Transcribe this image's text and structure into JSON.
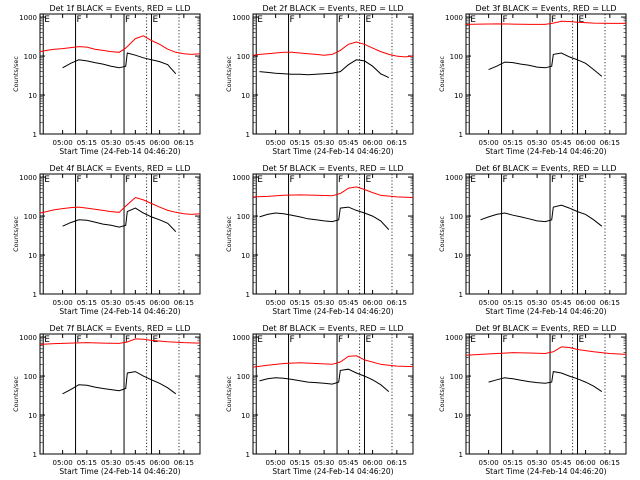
{
  "figure": {
    "background": "#ffffff",
    "axis_color": "#000000",
    "ylabel": "Counts/sec",
    "xlabel": "Start Time (24-Feb-14 04:46:20)",
    "x_tick_labels": [
      "05:00",
      "05:15",
      "05:30",
      "05:45",
      "06:00",
      "06:15"
    ],
    "y_tick_labels": [
      "1",
      "10",
      "100",
      "1000"
    ],
    "marker_labels": [
      "E",
      "F",
      "F",
      "E"
    ],
    "series_colors": {
      "events": "#000000",
      "lld": "#ff0000"
    }
  },
  "chart_data": [
    {
      "type": "line",
      "title": "Det 1f BLACK = Events, RED = LLD",
      "xlabel": "Start Time (24-Feb-14 04:46:20)",
      "ylabel": "Counts/sec",
      "xlim": [
        "04:46",
        "06:25"
      ],
      "ylim": [
        1,
        1200
      ],
      "y_scale": "log",
      "solid_markers_at": [
        "04:48",
        "05:08",
        "05:38",
        "05:55"
      ],
      "dotted_markers_at": [
        "05:52",
        "06:12"
      ],
      "series": [
        {
          "color": "#000000",
          "x": [
            "05:00",
            "05:05",
            "05:10",
            "05:15",
            "05:20",
            "05:25",
            "05:30",
            "05:35",
            "05:39",
            "05:40",
            "05:45",
            "05:50",
            "05:55",
            "06:00",
            "06:05",
            "06:10"
          ],
          "values": [
            50,
            65,
            80,
            75,
            68,
            62,
            55,
            50,
            55,
            120,
            105,
            90,
            80,
            72,
            60,
            35
          ]
        },
        {
          "color": "#ff0000",
          "x": [
            "04:46",
            "04:50",
            "04:55",
            "05:00",
            "05:05",
            "05:10",
            "05:15",
            "05:20",
            "05:25",
            "05:30",
            "05:35",
            "05:39",
            "05:45",
            "05:50",
            "05:55",
            "06:00",
            "06:05",
            "06:10",
            "06:15",
            "06:20",
            "06:25"
          ],
          "values": [
            130,
            140,
            150,
            155,
            165,
            175,
            170,
            150,
            140,
            130,
            125,
            160,
            280,
            330,
            250,
            200,
            150,
            125,
            115,
            110,
            115
          ]
        }
      ]
    },
    {
      "type": "line",
      "title": "Det 2f BLACK = Events, RED = LLD",
      "xlabel": "Start Time (24-Feb-14 04:46:20)",
      "ylabel": "Counts/sec",
      "xlim": [
        "04:46",
        "06:25"
      ],
      "ylim": [
        1,
        1200
      ],
      "y_scale": "log",
      "solid_markers_at": [
        "04:48",
        "05:08",
        "05:38",
        "05:55"
      ],
      "dotted_markers_at": [
        "05:52",
        "06:12"
      ],
      "series": [
        {
          "color": "#000000",
          "x": [
            "04:50",
            "04:55",
            "05:00",
            "05:05",
            "05:10",
            "05:15",
            "05:20",
            "05:25",
            "05:30",
            "05:35",
            "05:40",
            "05:45",
            "05:50",
            "05:55",
            "06:00",
            "06:05",
            "06:10"
          ],
          "values": [
            40,
            38,
            36,
            35,
            34,
            34,
            33,
            34,
            35,
            36,
            40,
            60,
            80,
            75,
            55,
            35,
            28
          ]
        },
        {
          "color": "#ff0000",
          "x": [
            "04:46",
            "04:50",
            "04:55",
            "05:00",
            "05:05",
            "05:10",
            "05:15",
            "05:20",
            "05:25",
            "05:30",
            "05:35",
            "05:40",
            "05:45",
            "05:50",
            "05:55",
            "06:00",
            "06:05",
            "06:10",
            "06:15",
            "06:20",
            "06:25"
          ],
          "values": [
            105,
            110,
            115,
            120,
            125,
            125,
            120,
            115,
            110,
            105,
            110,
            140,
            200,
            230,
            200,
            160,
            130,
            110,
            100,
            95,
            100
          ]
        }
      ]
    },
    {
      "type": "line",
      "title": "Det 3f BLACK = Events, RED = LLD",
      "xlabel": "Start Time (24-Feb-14 04:46:20)",
      "ylabel": "Counts/sec",
      "xlim": [
        "04:46",
        "06:25"
      ],
      "ylim": [
        1,
        1200
      ],
      "y_scale": "log",
      "solid_markers_at": [
        "04:48",
        "05:08",
        "05:38",
        "05:55"
      ],
      "dotted_markers_at": [
        "05:52",
        "06:12"
      ],
      "series": [
        {
          "color": "#000000",
          "x": [
            "05:00",
            "05:05",
            "05:10",
            "05:15",
            "05:20",
            "05:25",
            "05:30",
            "05:35",
            "05:39",
            "05:40",
            "05:45",
            "05:50",
            "05:55",
            "06:00",
            "06:05",
            "06:10"
          ],
          "values": [
            45,
            55,
            70,
            68,
            62,
            58,
            52,
            50,
            55,
            110,
            120,
            95,
            80,
            65,
            45,
            30
          ]
        },
        {
          "color": "#ff0000",
          "x": [
            "04:46",
            "04:55",
            "05:05",
            "05:15",
            "05:25",
            "05:35",
            "05:40",
            "05:45",
            "05:50",
            "05:55",
            "06:05",
            "06:15",
            "06:25"
          ],
          "values": [
            650,
            660,
            670,
            660,
            650,
            650,
            700,
            780,
            770,
            740,
            700,
            690,
            690
          ]
        }
      ]
    },
    {
      "type": "line",
      "title": "Det 4f BLACK = Events, RED = LLD",
      "xlabel": "Start Time (24-Feb-14 04:46:20)",
      "ylabel": "Counts/sec",
      "xlim": [
        "04:46",
        "06:25"
      ],
      "ylim": [
        1,
        1200
      ],
      "y_scale": "log",
      "solid_markers_at": [
        "04:48",
        "05:08",
        "05:38",
        "05:55"
      ],
      "dotted_markers_at": [
        "05:52",
        "06:12"
      ],
      "series": [
        {
          "color": "#000000",
          "x": [
            "05:00",
            "05:05",
            "05:10",
            "05:15",
            "05:20",
            "05:25",
            "05:30",
            "05:35",
            "05:39",
            "05:40",
            "05:45",
            "05:50",
            "05:55",
            "06:00",
            "06:05",
            "06:10"
          ],
          "values": [
            55,
            68,
            80,
            78,
            70,
            62,
            58,
            52,
            58,
            130,
            160,
            120,
            95,
            80,
            65,
            40
          ]
        },
        {
          "color": "#ff0000",
          "x": [
            "04:46",
            "04:50",
            "04:55",
            "05:00",
            "05:05",
            "05:10",
            "05:15",
            "05:20",
            "05:25",
            "05:30",
            "05:35",
            "05:39",
            "05:45",
            "05:50",
            "05:55",
            "06:00",
            "06:05",
            "06:10",
            "06:15",
            "06:20",
            "06:25"
          ],
          "values": [
            120,
            130,
            145,
            155,
            165,
            170,
            160,
            150,
            140,
            130,
            125,
            180,
            300,
            260,
            210,
            170,
            140,
            125,
            115,
            110,
            115
          ]
        }
      ]
    },
    {
      "type": "line",
      "title": "Det 5f BLACK = Events, RED = LLD",
      "xlabel": "Start Time (24-Feb-14 04:46:20)",
      "ylabel": "Counts/sec",
      "xlim": [
        "04:46",
        "06:25"
      ],
      "ylim": [
        1,
        1200
      ],
      "y_scale": "log",
      "solid_markers_at": [
        "04:48",
        "05:08",
        "05:38",
        "05:55"
      ],
      "dotted_markers_at": [
        "05:52",
        "06:12"
      ],
      "series": [
        {
          "color": "#000000",
          "x": [
            "04:50",
            "04:55",
            "05:00",
            "05:05",
            "05:10",
            "05:15",
            "05:20",
            "05:25",
            "05:30",
            "05:35",
            "05:39",
            "05:40",
            "05:45",
            "05:50",
            "05:55",
            "06:00",
            "06:05",
            "06:10"
          ],
          "values": [
            95,
            110,
            120,
            115,
            105,
            95,
            85,
            80,
            75,
            72,
            80,
            160,
            170,
            140,
            120,
            100,
            75,
            45
          ]
        },
        {
          "color": "#ff0000",
          "x": [
            "04:46",
            "04:55",
            "05:05",
            "05:15",
            "05:25",
            "05:35",
            "05:40",
            "05:45",
            "05:50",
            "05:55",
            "06:00",
            "06:05",
            "06:15",
            "06:25"
          ],
          "values": [
            310,
            320,
            340,
            350,
            340,
            330,
            380,
            520,
            560,
            480,
            400,
            340,
            310,
            300
          ]
        }
      ]
    },
    {
      "type": "line",
      "title": "Det 6f BLACK = Events, RED = LLD",
      "xlabel": "Start Time (24-Feb-14 04:46:20)",
      "ylabel": "Counts/sec",
      "xlim": [
        "04:46",
        "06:25"
      ],
      "ylim": [
        1,
        1200
      ],
      "y_scale": "log",
      "solid_markers_at": [
        "04:48",
        "05:08",
        "05:38",
        "05:55"
      ],
      "dotted_markers_at": [
        "05:52",
        "06:12"
      ],
      "series": [
        {
          "color": "#000000",
          "x": [
            "04:55",
            "05:00",
            "05:05",
            "05:10",
            "05:15",
            "05:20",
            "05:25",
            "05:30",
            "05:35",
            "05:39",
            "05:40",
            "05:45",
            "05:50",
            "05:55",
            "06:00",
            "06:05",
            "06:10"
          ],
          "values": [
            80,
            95,
            110,
            120,
            105,
            95,
            85,
            75,
            72,
            80,
            170,
            190,
            160,
            130,
            110,
            80,
            55
          ]
        }
      ]
    },
    {
      "type": "line",
      "title": "Det 7f BLACK = Events, RED = LLD",
      "xlabel": "Start Time (24-Feb-14 04:46:20)",
      "ylabel": "Counts/sec",
      "xlim": [
        "04:46",
        "06:25"
      ],
      "ylim": [
        1,
        1200
      ],
      "y_scale": "log",
      "solid_markers_at": [
        "04:48",
        "05:08",
        "05:38",
        "05:55"
      ],
      "dotted_markers_at": [
        "05:52",
        "06:12"
      ],
      "series": [
        {
          "color": "#000000",
          "x": [
            "05:00",
            "05:05",
            "05:10",
            "05:15",
            "05:20",
            "05:25",
            "05:30",
            "05:35",
            "05:39",
            "05:40",
            "05:45",
            "05:50",
            "05:55",
            "06:00",
            "06:05",
            "06:10"
          ],
          "values": [
            35,
            45,
            60,
            58,
            52,
            48,
            45,
            42,
            48,
            120,
            130,
            100,
            80,
            65,
            50,
            35
          ]
        },
        {
          "color": "#ff0000",
          "x": [
            "04:46",
            "04:55",
            "05:05",
            "05:15",
            "05:25",
            "05:35",
            "05:40",
            "05:45",
            "05:50",
            "05:55",
            "06:05",
            "06:15",
            "06:25"
          ],
          "values": [
            650,
            680,
            700,
            720,
            700,
            690,
            750,
            900,
            880,
            820,
            760,
            720,
            700
          ]
        }
      ]
    },
    {
      "type": "line",
      "title": "Det 8f BLACK = Events, RED = LLD",
      "xlabel": "Start Time (24-Feb-14 04:46:20)",
      "ylabel": "Counts/sec",
      "xlim": [
        "04:46",
        "06:25"
      ],
      "ylim": [
        1,
        1200
      ],
      "y_scale": "log",
      "solid_markers_at": [
        "04:48",
        "05:08",
        "05:38",
        "05:55"
      ],
      "dotted_markers_at": [
        "05:52",
        "06:12"
      ],
      "series": [
        {
          "color": "#000000",
          "x": [
            "04:50",
            "04:55",
            "05:00",
            "05:05",
            "05:10",
            "05:15",
            "05:20",
            "05:25",
            "05:30",
            "05:35",
            "05:39",
            "05:40",
            "05:45",
            "05:50",
            "05:55",
            "06:00",
            "06:05",
            "06:10"
          ],
          "values": [
            75,
            85,
            90,
            88,
            82,
            76,
            70,
            68,
            65,
            62,
            70,
            140,
            150,
            120,
            100,
            80,
            60,
            40
          ]
        },
        {
          "color": "#ff0000",
          "x": [
            "04:46",
            "04:55",
            "05:05",
            "05:15",
            "05:25",
            "05:35",
            "05:40",
            "05:45",
            "05:50",
            "05:55",
            "06:05",
            "06:15",
            "06:25"
          ],
          "values": [
            170,
            190,
            210,
            220,
            210,
            200,
            230,
            320,
            330,
            260,
            200,
            180,
            175
          ]
        }
      ]
    },
    {
      "type": "line",
      "title": "Det 9f BLACK = Events, RED = LLD",
      "xlabel": "Start Time (24-Feb-14 04:46:20)",
      "ylabel": "Counts/sec",
      "xlim": [
        "04:46",
        "06:25"
      ],
      "ylim": [
        1,
        1200
      ],
      "y_scale": "log",
      "solid_markers_at": [
        "04:48",
        "05:08",
        "05:38",
        "05:55"
      ],
      "dotted_markers_at": [
        "05:52",
        "06:12"
      ],
      "series": [
        {
          "color": "#000000",
          "x": [
            "05:00",
            "05:05",
            "05:10",
            "05:15",
            "05:20",
            "05:25",
            "05:30",
            "05:35",
            "05:39",
            "05:40",
            "05:45",
            "05:50",
            "05:55",
            "06:00",
            "06:05",
            "06:10"
          ],
          "values": [
            70,
            80,
            90,
            85,
            78,
            72,
            68,
            65,
            70,
            130,
            120,
            100,
            85,
            70,
            55,
            40
          ]
        },
        {
          "color": "#ff0000",
          "x": [
            "04:46",
            "04:55",
            "05:05",
            "05:15",
            "05:25",
            "05:35",
            "05:40",
            "05:45",
            "05:50",
            "05:55",
            "06:05",
            "06:15",
            "06:25"
          ],
          "values": [
            340,
            360,
            380,
            400,
            390,
            380,
            420,
            560,
            540,
            480,
            420,
            380,
            360
          ]
        }
      ]
    }
  ]
}
